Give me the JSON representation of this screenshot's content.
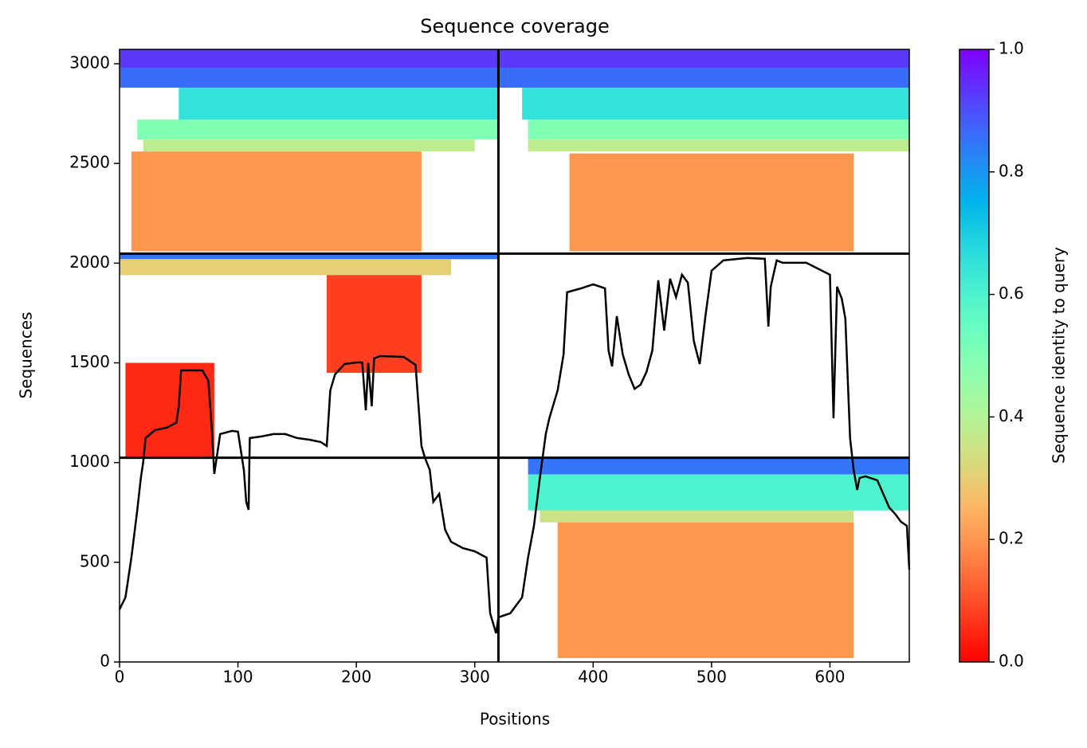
{
  "chart_data": {
    "type": "coverage",
    "title": "Sequence coverage",
    "xlabel": "Positions",
    "ylabel": "Sequences",
    "xlim": [
      0,
      667
    ],
    "ylim": [
      0,
      3072
    ],
    "xticks": [
      0,
      100,
      200,
      300,
      400,
      500,
      600
    ],
    "yticks": [
      0,
      500,
      1000,
      1500,
      2000,
      2500,
      3000
    ],
    "colorbar": {
      "label": "Sequence identity to query",
      "lim": [
        0,
        1
      ],
      "ticks": [
        {
          "value": 0,
          "label": "0.0"
        },
        0.2,
        0.4,
        0.6,
        0.8,
        {
          "value": 1,
          "label": "1.0"
        }
      ]
    },
    "dividers": {
      "x": [
        320
      ],
      "y": [
        1024,
        2048
      ]
    },
    "line_color": "#000000",
    "blocks": [
      {
        "x": [
          0,
          320
        ],
        "y": [
          2980,
          3072
        ],
        "identity": 0.93
      },
      {
        "x": [
          0,
          320
        ],
        "y": [
          2880,
          2980
        ],
        "identity": 0.86
      },
      {
        "x": [
          50,
          320
        ],
        "y": [
          2720,
          2880
        ],
        "identity": 0.65
      },
      {
        "x": [
          15,
          320
        ],
        "y": [
          2620,
          2720
        ],
        "identity": 0.5
      },
      {
        "x": [
          20,
          300
        ],
        "y": [
          2560,
          2620
        ],
        "identity": 0.38
      },
      {
        "x": [
          10,
          255
        ],
        "y": [
          2060,
          2560
        ],
        "identity": 0.2
      },
      {
        "x": [
          320,
          667
        ],
        "y": [
          2980,
          3072
        ],
        "identity": 0.93
      },
      {
        "x": [
          320,
          667
        ],
        "y": [
          2880,
          2980
        ],
        "identity": 0.86
      },
      {
        "x": [
          340,
          667
        ],
        "y": [
          2720,
          2880
        ],
        "identity": 0.65
      },
      {
        "x": [
          345,
          667
        ],
        "y": [
          2620,
          2720
        ],
        "identity": 0.5
      },
      {
        "x": [
          345,
          667
        ],
        "y": [
          2560,
          2620
        ],
        "identity": 0.38
      },
      {
        "x": [
          380,
          620
        ],
        "y": [
          2060,
          2550
        ],
        "identity": 0.2
      },
      {
        "x": [
          0,
          320
        ],
        "y": [
          2020,
          2048
        ],
        "identity": 0.85
      },
      {
        "x": [
          0,
          280
        ],
        "y": [
          1940,
          2020
        ],
        "identity": 0.3
      },
      {
        "x": [
          175,
          255
        ],
        "y": [
          1450,
          1940
        ],
        "identity": 0.08
      },
      {
        "x": [
          5,
          80
        ],
        "y": [
          1030,
          1500
        ],
        "identity": 0.05
      },
      {
        "x": [
          345,
          667
        ],
        "y": [
          940,
          1024
        ],
        "identity": 0.85
      },
      {
        "x": [
          345,
          667
        ],
        "y": [
          760,
          940
        ],
        "identity": 0.6
      },
      {
        "x": [
          355,
          620
        ],
        "y": [
          700,
          760
        ],
        "identity": 0.35
      },
      {
        "x": [
          370,
          620
        ],
        "y": [
          20,
          700
        ],
        "identity": 0.2
      }
    ],
    "coverage": {
      "x": [
        0,
        5,
        10,
        15,
        18,
        20,
        22,
        30,
        40,
        48,
        50,
        52,
        60,
        70,
        75,
        78,
        80,
        85,
        95,
        100,
        105,
        107,
        109,
        110,
        120,
        130,
        140,
        150,
        160,
        170,
        175,
        178,
        182,
        190,
        200,
        205,
        208,
        210,
        213,
        215,
        220,
        240,
        250,
        255,
        258,
        262,
        265,
        270,
        275,
        280,
        290,
        300,
        310,
        313,
        318,
        320,
        330,
        340,
        345,
        350,
        355,
        360,
        363,
        370,
        375,
        378,
        390,
        400,
        410,
        413,
        416,
        420,
        425,
        430,
        435,
        440,
        445,
        450,
        455,
        460,
        465,
        470,
        475,
        480,
        485,
        490,
        495,
        500,
        510,
        530,
        545,
        548,
        550,
        555,
        560,
        580,
        600,
        603,
        606,
        610,
        613,
        617,
        620,
        623,
        625,
        630,
        640,
        645,
        650,
        655,
        660,
        665,
        667
      ],
      "values": [
        264,
        324,
        523,
        763,
        923,
        1003,
        1123,
        1163,
        1175,
        1200,
        1282,
        1462,
        1462,
        1462,
        1410,
        1163,
        943,
        1143,
        1159,
        1155,
        963,
        803,
        763,
        1123,
        1131,
        1143,
        1143,
        1123,
        1115,
        1103,
        1083,
        1362,
        1442,
        1494,
        1502,
        1502,
        1262,
        1500,
        1282,
        1522,
        1534,
        1530,
        1490,
        1083,
        1023,
        963,
        803,
        843,
        663,
        603,
        571,
        555,
        523,
        244,
        144,
        224,
        244,
        324,
        523,
        683,
        923,
        1143,
        1222,
        1362,
        1542,
        1854,
        1874,
        1894,
        1874,
        1562,
        1482,
        1734,
        1542,
        1442,
        1370,
        1390,
        1454,
        1562,
        1914,
        1662,
        1922,
        1830,
        1942,
        1902,
        1610,
        1494,
        1742,
        1962,
        2014,
        2026,
        2022,
        1682,
        1882,
        2014,
        2002,
        2002,
        1942,
        1222,
        1882,
        1822,
        1722,
        1123,
        963,
        863,
        923,
        931,
        911,
        843,
        775,
        743,
        703,
        683,
        464
      ]
    }
  }
}
